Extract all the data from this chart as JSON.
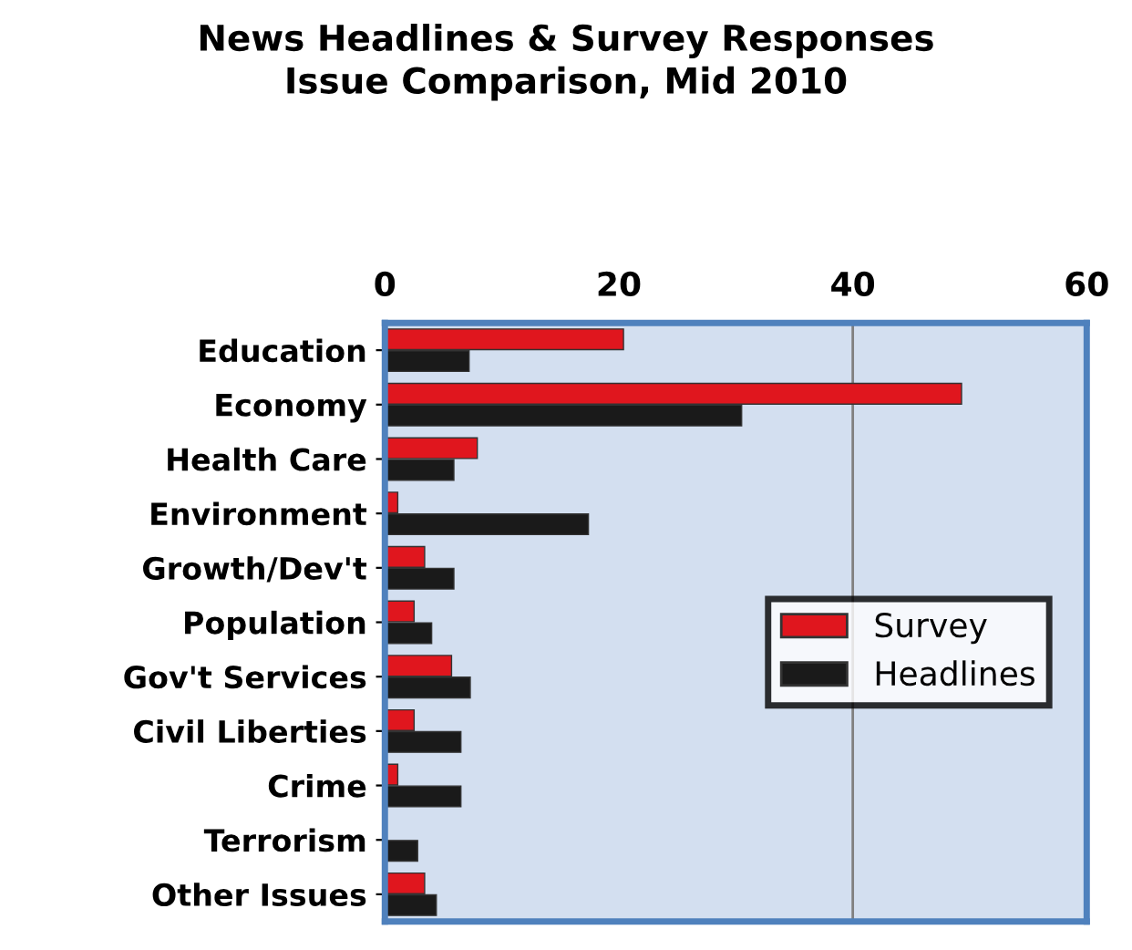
{
  "chart_data": {
    "type": "bar",
    "orientation": "horizontal",
    "title": "News Headlines & Survey Responses\nIssue Comparison, Mid 2010",
    "categories": [
      "Education",
      "Economy",
      "Health Care",
      "Environment",
      "Growth/Dev't",
      "Population",
      "Gov't Services",
      "Civil Liberties",
      "Crime",
      "Terrorism",
      "Other Issues"
    ],
    "series": [
      {
        "name": "Survey",
        "color": "#e0161e",
        "values": [
          20.4,
          49.3,
          7.9,
          1.1,
          3.4,
          2.5,
          5.7,
          2.5,
          1.1,
          null,
          3.4
        ]
      },
      {
        "name": "Headlines",
        "color": "#1a1a1a",
        "values": [
          7.2,
          30.5,
          5.9,
          17.4,
          5.9,
          4.0,
          7.3,
          6.5,
          6.5,
          2.8,
          4.4
        ]
      }
    ],
    "xlim": [
      0,
      60
    ],
    "xticks": [
      0,
      20,
      40,
      60
    ],
    "ref_lines": [
      {
        "axis": "x",
        "value": 40,
        "color": "#808080"
      }
    ],
    "legend": "right",
    "grid": false
  }
}
